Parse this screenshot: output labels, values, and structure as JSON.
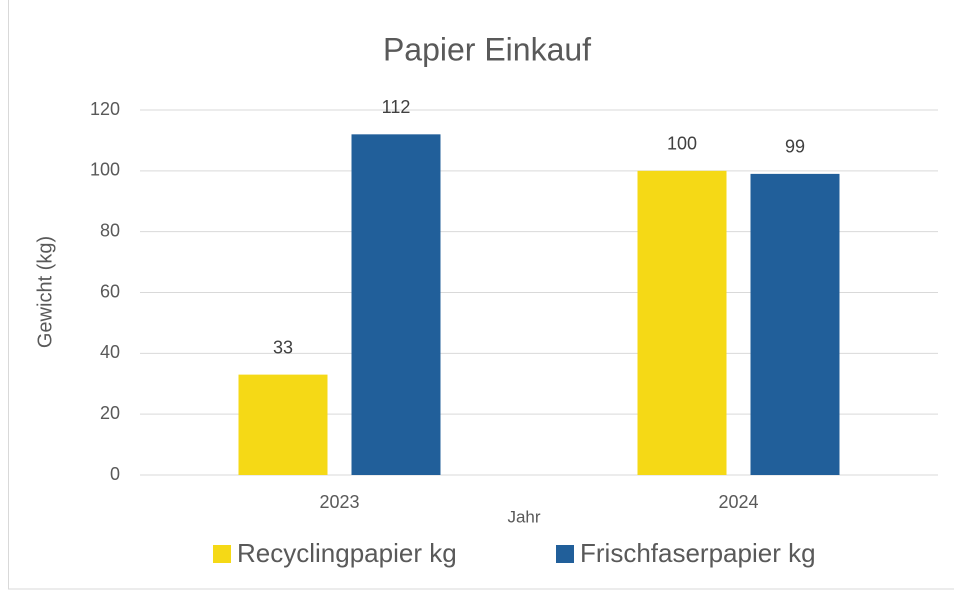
{
  "chart_data": {
    "type": "bar",
    "title": "Papier Einkauf",
    "x_label": "Jahr",
    "y_label": "Gewicht (kg)",
    "categories": [
      "2023",
      "2024"
    ],
    "series": [
      {
        "name": "Recyclingpapier kg",
        "color": "#f5d916",
        "values": [
          33,
          100
        ]
      },
      {
        "name": "Frischfaserpapier kg",
        "color": "#215f9a",
        "values": [
          112,
          99
        ]
      }
    ],
    "ylim": [
      0,
      120
    ],
    "yticks": [
      0,
      20,
      40,
      60,
      80,
      100,
      120
    ],
    "grid": true,
    "legend": "bottom"
  }
}
